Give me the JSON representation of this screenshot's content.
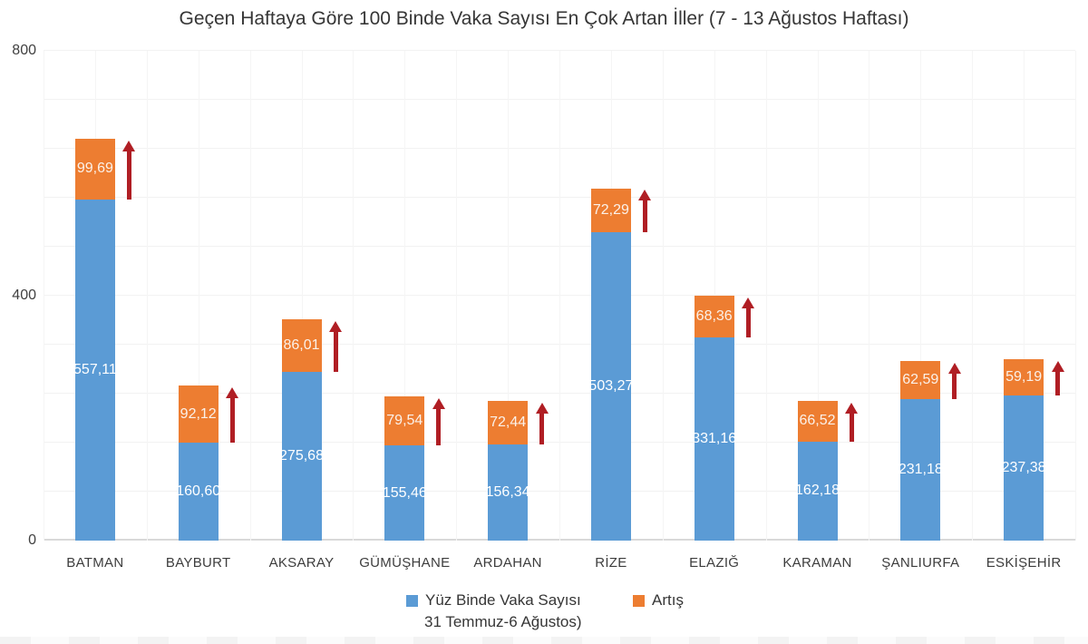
{
  "title": "Geçen Haftaya Göre 100 Binde Vaka Sayısı En Çok Artan İller (7 - 13 Ağustos Haftası)",
  "legend": {
    "series1_label": "Yüz Binde Vaka Sayısı",
    "series1_label_line2": "31 Temmuz-6 Ağustos)",
    "series2_label": "Artış"
  },
  "colors": {
    "vaka_blue": "#5B9BD5",
    "artis_orange": "#ED7D31",
    "arrow_red": "#B01E24",
    "blue_label_text": "#FFFFFF",
    "orange_label_text": "#FBF1E9",
    "axis_text": "#404040",
    "gridline": "#f2f2f2"
  },
  "chart_data": {
    "type": "bar",
    "stacked": true,
    "title": "Geçen Haftaya Göre 100 Binde Vaka Sayısı En Çok Artan İller (7 - 13 Ağustos Haftası)",
    "xlabel": "",
    "ylabel": "",
    "ylim": [
      0,
      800
    ],
    "grid": true,
    "gridline_step": 80,
    "legend_position": "bottom",
    "annotation_note": "dark-red upward arrow beside each Artış segment",
    "yticks": [
      {
        "value": 0,
        "label": "0"
      },
      {
        "value": 400,
        "label": "400"
      },
      {
        "value": 800,
        "label": "800"
      }
    ],
    "categories": [
      "BATMAN",
      "BAYBURT",
      "AKSARAY",
      "GÜMÜŞHANE",
      "ARDAHAN",
      "RİZE",
      "ELAZIĞ",
      "KARAMAN",
      "ŞANLIURFA",
      "ESKİŞEHİR"
    ],
    "series": [
      {
        "name": "Yüz Binde Vaka Sayısı (31 Temmuz-6 Ağustos)",
        "color": "#5B9BD5",
        "values": [
          557.11,
          160.6,
          275.68,
          155.46,
          156.34,
          503.27,
          331.16,
          162.18,
          231.18,
          237.38
        ],
        "labels": [
          "557,11",
          "160,60",
          "275,68",
          "155,46",
          "156,34",
          "503,27",
          "331,16",
          "162,18",
          "231,18",
          "237,38"
        ]
      },
      {
        "name": "Artış",
        "color": "#ED7D31",
        "values": [
          99.69,
          92.12,
          86.01,
          79.54,
          72.44,
          72.29,
          68.36,
          66.52,
          62.59,
          59.19
        ],
        "labels": [
          "99,69",
          "92,12",
          "86,01",
          "79,54",
          "72,44",
          "72,29",
          "68,36",
          "66,52",
          "62,59",
          "59,19"
        ]
      }
    ]
  }
}
